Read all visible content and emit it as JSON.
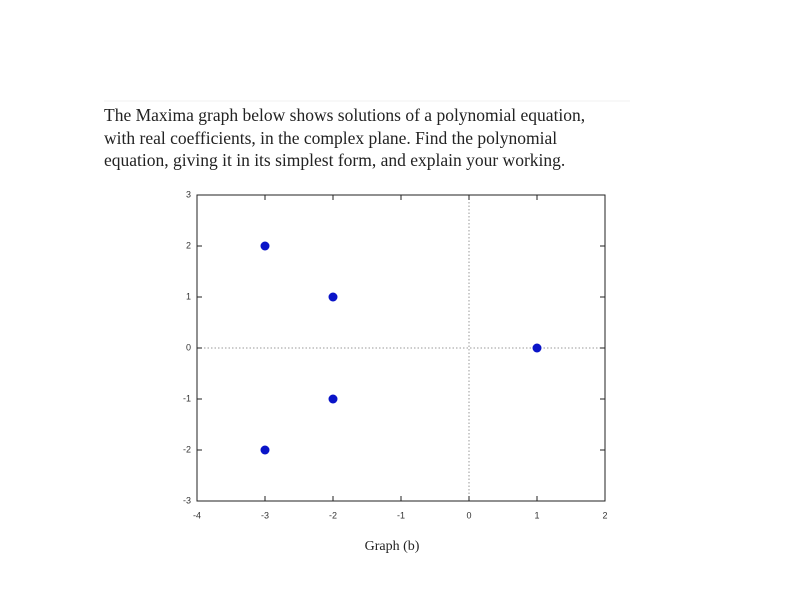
{
  "question": {
    "lines": [
      "The Maxima graph below shows solutions of a polynomial equation,",
      "with real coefficients, in the complex plane. Find the polynomial",
      "equation, giving it in its simplest form, and explain your working."
    ]
  },
  "chart_data": {
    "type": "scatter",
    "x": [
      -3,
      -2,
      1,
      -2,
      -3
    ],
    "values": [
      2,
      1,
      0,
      -1,
      -2
    ],
    "color": "#0a14c8",
    "xlim": [
      -4,
      2
    ],
    "xticks": [
      -4,
      -3,
      -2,
      -1,
      0,
      1,
      2
    ],
    "ylim": [
      -3,
      3
    ],
    "yticks": [
      -3,
      -2,
      -1,
      0,
      1,
      2,
      3
    ],
    "zero_lines": true,
    "caption": "Graph (b)"
  }
}
